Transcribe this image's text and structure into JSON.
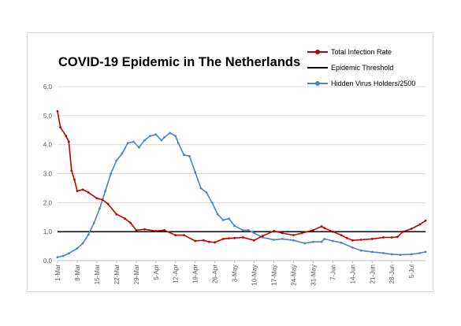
{
  "chart_data": {
    "type": "line",
    "title": "COVID-19 Epidemic in The Netherlands",
    "xlabel": "",
    "ylabel": "",
    "ylim": [
      0,
      6
    ],
    "yticks": [
      "0.0",
      "1.0",
      "2.0",
      "3.0",
      "4.0",
      "5.0",
      "6.0"
    ],
    "grid": true,
    "legend_position": "top-right",
    "x_start": "2020-03-01",
    "x_end": "2020-07-10",
    "xtick_labels": [
      "1-Mar",
      "8-Mar",
      "15-Mar",
      "22-Mar",
      "29-Mar",
      "5-Apr",
      "12-Apr",
      "19-Apr",
      "26-Apr",
      "3-May",
      "10-May",
      "17-May",
      "24-May",
      "31-May",
      "7-Jun",
      "14-Jun",
      "21-Jun",
      "28-Jun",
      "5-Jul"
    ],
    "series": [
      {
        "name": "Total Infection Rate",
        "color": "#c00000",
        "marker": "circle",
        "x": [
          "2020-03-01",
          "2020-03-02",
          "2020-03-04",
          "2020-03-05",
          "2020-03-06",
          "2020-03-07",
          "2020-03-08",
          "2020-03-10",
          "2020-03-12",
          "2020-03-15",
          "2020-03-17",
          "2020-03-19",
          "2020-03-22",
          "2020-03-25",
          "2020-03-27",
          "2020-03-29",
          "2020-04-01",
          "2020-04-05",
          "2020-04-08",
          "2020-04-12",
          "2020-04-15",
          "2020-04-19",
          "2020-04-22",
          "2020-04-24",
          "2020-04-26",
          "2020-04-29",
          "2020-05-01",
          "2020-05-03",
          "2020-05-06",
          "2020-05-10",
          "2020-05-13",
          "2020-05-17",
          "2020-05-20",
          "2020-05-24",
          "2020-05-27",
          "2020-05-31",
          "2020-06-03",
          "2020-06-04",
          "2020-06-07",
          "2020-06-10",
          "2020-06-12",
          "2020-06-14",
          "2020-06-17",
          "2020-06-21",
          "2020-06-25",
          "2020-06-28",
          "2020-06-30",
          "2020-07-02",
          "2020-07-05",
          "2020-07-08",
          "2020-07-10"
        ],
        "y": [
          5.15,
          4.6,
          4.3,
          4.1,
          3.1,
          2.8,
          2.4,
          2.45,
          2.35,
          2.15,
          2.1,
          1.95,
          1.6,
          1.45,
          1.3,
          1.05,
          1.08,
          1.02,
          1.05,
          0.88,
          0.88,
          0.68,
          0.7,
          0.65,
          0.63,
          0.75,
          0.77,
          0.78,
          0.8,
          0.7,
          0.85,
          1.02,
          0.95,
          0.88,
          0.95,
          1.05,
          1.18,
          1.12,
          1.0,
          0.88,
          0.78,
          0.7,
          0.72,
          0.75,
          0.8,
          0.8,
          0.82,
          1.0,
          1.1,
          1.25,
          1.38
        ]
      },
      {
        "name": "Epidemic Threshold",
        "color": "#000000",
        "marker": "none",
        "x": [
          "2020-03-01",
          "2020-07-10"
        ],
        "y": [
          1.0,
          1.0
        ]
      },
      {
        "name": "Hidden Virus Holders/2500",
        "color": "#4f81bd",
        "marker": "circle",
        "x": [
          "2020-03-01",
          "2020-03-03",
          "2020-03-05",
          "2020-03-08",
          "2020-03-10",
          "2020-03-12",
          "2020-03-14",
          "2020-03-16",
          "2020-03-18",
          "2020-03-20",
          "2020-03-22",
          "2020-03-24",
          "2020-03-26",
          "2020-03-28",
          "2020-03-30",
          "2020-04-01",
          "2020-04-03",
          "2020-04-05",
          "2020-04-07",
          "2020-04-08",
          "2020-04-10",
          "2020-04-12",
          "2020-04-13",
          "2020-04-15",
          "2020-04-17",
          "2020-04-19",
          "2020-04-21",
          "2020-04-23",
          "2020-04-25",
          "2020-04-27",
          "2020-04-29",
          "2020-05-01",
          "2020-05-03",
          "2020-05-06",
          "2020-05-08",
          "2020-05-10",
          "2020-05-13",
          "2020-05-17",
          "2020-05-20",
          "2020-05-24",
          "2020-05-28",
          "2020-05-31",
          "2020-06-03",
          "2020-06-04",
          "2020-06-07",
          "2020-06-10",
          "2020-06-14",
          "2020-06-17",
          "2020-06-21",
          "2020-06-25",
          "2020-06-28",
          "2020-07-01",
          "2020-07-05",
          "2020-07-08",
          "2020-07-10"
        ],
        "y": [
          0.12,
          0.16,
          0.25,
          0.42,
          0.6,
          0.9,
          1.3,
          1.8,
          2.4,
          3.0,
          3.45,
          3.7,
          4.05,
          4.1,
          3.9,
          4.15,
          4.3,
          4.35,
          4.15,
          4.25,
          4.4,
          4.3,
          4.05,
          3.65,
          3.6,
          3.05,
          2.5,
          2.35,
          2.0,
          1.6,
          1.4,
          1.45,
          1.2,
          1.05,
          1.05,
          0.95,
          0.8,
          0.72,
          0.75,
          0.7,
          0.6,
          0.65,
          0.65,
          0.75,
          0.68,
          0.62,
          0.45,
          0.35,
          0.3,
          0.26,
          0.22,
          0.2,
          0.22,
          0.26,
          0.3
        ]
      }
    ]
  }
}
